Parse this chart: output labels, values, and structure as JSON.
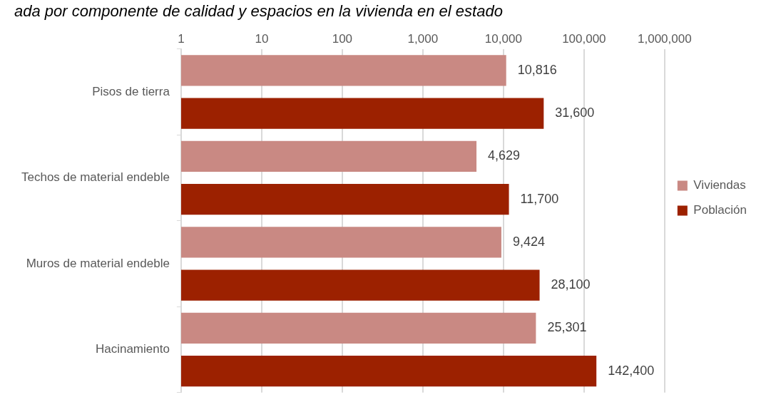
{
  "chart_data": {
    "type": "bar",
    "orientation": "horizontal",
    "title": "ada por componente de calidad y espacios en la vivienda en el estado",
    "categories": [
      "Pisos de tierra",
      "Techos de material endeble",
      "Muros de material endeble",
      "Hacinamiento"
    ],
    "series": [
      {
        "name": "Viviendas",
        "color": "#c98983",
        "values": [
          10816,
          4629,
          9424,
          25301
        ],
        "value_labels": [
          "10,816",
          "4,629",
          "9,424",
          "25,301"
        ]
      },
      {
        "name": "Población",
        "color": "#9c2100",
        "values": [
          31600,
          11700,
          28100,
          142400
        ],
        "value_labels": [
          "31,600",
          "11,700",
          "28,100",
          "142,400"
        ]
      }
    ],
    "log": "x",
    "xlim": [
      1,
      1000000
    ],
    "xticks": [
      {
        "value": 1,
        "label": "1"
      },
      {
        "value": 10,
        "label": "10"
      },
      {
        "value": 100,
        "label": "100"
      },
      {
        "value": 1000,
        "label": "1,000"
      },
      {
        "value": 10000,
        "label": "10,000"
      },
      {
        "value": 100000,
        "label": "100,000"
      },
      {
        "value": 1000000,
        "label": "1,000,000"
      }
    ],
    "grid": "x",
    "legend": "right"
  }
}
